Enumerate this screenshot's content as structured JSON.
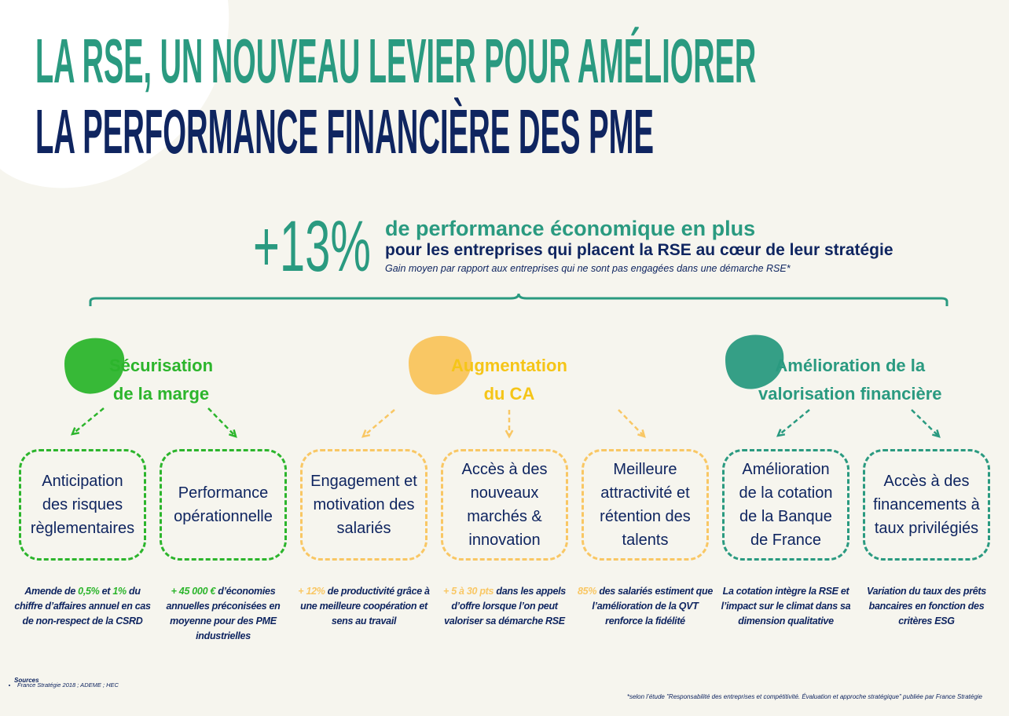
{
  "header": {
    "title_line1": "LA RSE, UN NOUVEAU LEVIER POUR AMÉLIORER",
    "title_line2": "LA PERFORMANCE FINANCIÈRE DES PME"
  },
  "highlight": {
    "figure": "+13%",
    "headline": "de performance économique en plus",
    "subline": "pour les entreprises qui placent la RSE au cœur de leur stratégie",
    "note": "Gain moyen par rapport aux entreprises qui ne sont pas engagées dans une démarche RSE*"
  },
  "groups": [
    {
      "title": [
        "Sécurisation",
        "de la marge"
      ],
      "color": "#2cb52c",
      "items": [
        {
          "label": [
            "Anticipation",
            "des risques",
            "règlementaires"
          ],
          "note": [
            {
              "text": "Amende de "
            },
            {
              "text": "0,5%",
              "emphasis": true
            },
            {
              "text": " et "
            },
            {
              "text": "1%",
              "emphasis": true
            },
            {
              "text": " du chiffre d’affaires annuel en cas de non-respect de la CSRD"
            }
          ]
        },
        {
          "label": [
            "Performance",
            "opérationnelle"
          ],
          "note": [
            {
              "text": "+ 45 000 €",
              "emphasis": true
            },
            {
              "text": " d’économies annuelles préconisées en moyenne pour des PME industrielles"
            }
          ]
        }
      ]
    },
    {
      "title": [
        "Augmentation",
        "du CA"
      ],
      "color": "#f9c764",
      "items": [
        {
          "label": [
            "Engagement et",
            "motivation des",
            "salariés"
          ],
          "note": [
            {
              "text": "+ 12%",
              "emphasis": true
            },
            {
              "text": " de productivité grâce à une meilleure coopération et sens au travail"
            }
          ]
        },
        {
          "label": [
            "Accès à des",
            "nouveaux",
            "marchés &",
            "innovation"
          ],
          "note": [
            {
              "text": "+ 5 à 30 pts",
              "emphasis": true
            },
            {
              "text": " dans les appels d’offre lorsque l’on peut valoriser sa démarche RSE"
            }
          ]
        },
        {
          "label": [
            "Meilleure",
            "attractivité et",
            "rétention des",
            "talents"
          ],
          "note": [
            {
              "text": "85%",
              "emphasis": true
            },
            {
              "text": " des salariés estiment que l’amélioration de la QVT renforce la fidélité"
            }
          ]
        }
      ]
    },
    {
      "title": [
        "Amélioration de la",
        "valorisation financière"
      ],
      "color": "#2a9a80",
      "items": [
        {
          "label": [
            "Amélioration",
            "de la cotation",
            "de la Banque",
            "de France"
          ],
          "note": [
            {
              "text": "La cotation intègre la RSE et l’impact sur le climat dans sa dimension qualitative"
            }
          ]
        },
        {
          "label": [
            "Accès à des",
            "financements à",
            "taux privilégiés"
          ],
          "note": [
            {
              "text": "Variation du taux des prêts bancaires en fonction des critères ESG"
            }
          ]
        }
      ]
    }
  ],
  "sources": {
    "title": "Sources",
    "items": [
      "France Stratégie 2018 ; ADEME ; HEC"
    ]
  },
  "footnote": "*selon l’étude \"Responsabilité des entreprises et compétitivité. Évaluation et approche stratégique\" publiée par France Stratégie"
}
